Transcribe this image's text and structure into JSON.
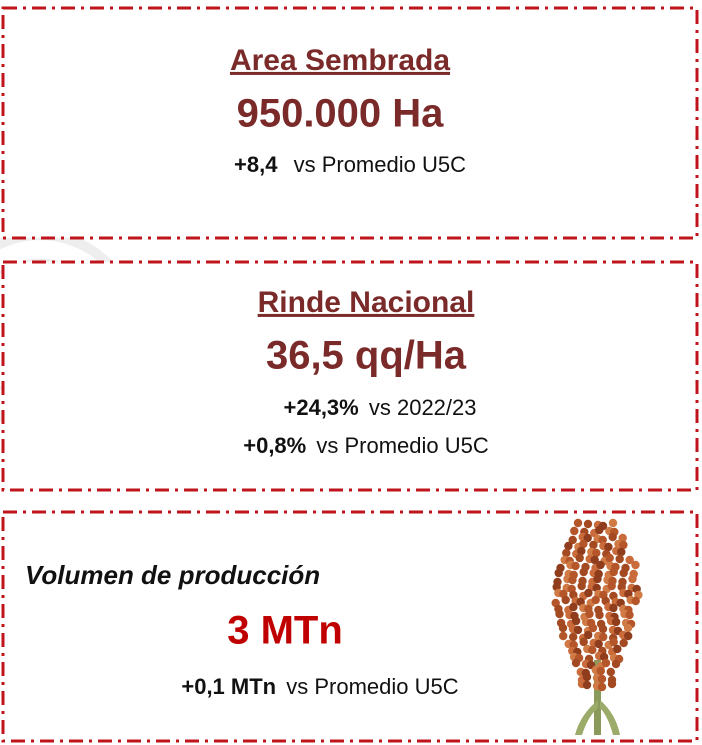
{
  "cards": [
    {
      "title": "Area Sembrada",
      "value": "950.000 Ha",
      "comparisons": [
        {
          "change": "+8,4",
          "text": "vs Promedio U5C"
        }
      ]
    },
    {
      "title": "Rinde Nacional",
      "value": "36,5 qq/Ha",
      "comparisons": [
        {
          "change": "+24,3%",
          "text": "vs 2022/23"
        },
        {
          "change": "+0,8%",
          "text": "vs Promedio U5C"
        }
      ]
    },
    {
      "title": "Volumen de producción",
      "value": "3 MTn",
      "comparisons": [
        {
          "change": "+0,1 MTn",
          "text": "vs Promedio U5C"
        }
      ]
    }
  ]
}
